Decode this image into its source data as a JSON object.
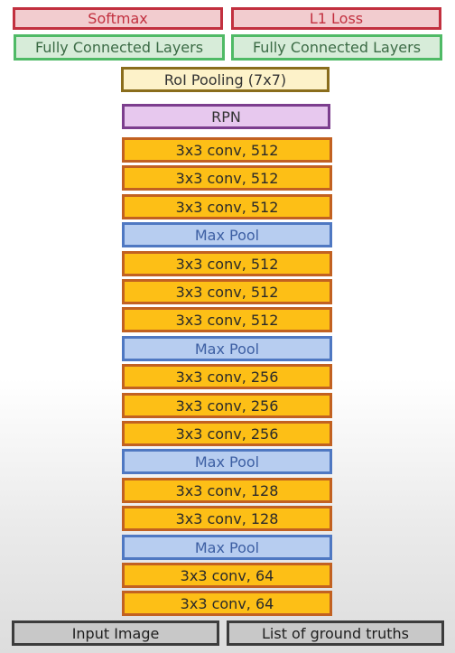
{
  "top": {
    "softmax": "Softmax",
    "l1_loss": "L1 Loss"
  },
  "fc": {
    "left": "Fully Connected Layers",
    "right": "Fully Connected Layers"
  },
  "roi_pooling": "RoI Pooling (7x7)",
  "rpn": "RPN",
  "layers": [
    {
      "type": "conv",
      "label": "3x3 conv, 512"
    },
    {
      "type": "conv",
      "label": "3x3 conv, 512"
    },
    {
      "type": "conv",
      "label": "3x3 conv, 512"
    },
    {
      "type": "pool",
      "label": "Max Pool"
    },
    {
      "type": "conv",
      "label": "3x3 conv, 512"
    },
    {
      "type": "conv",
      "label": "3x3 conv, 512"
    },
    {
      "type": "conv",
      "label": "3x3 conv, 512"
    },
    {
      "type": "pool",
      "label": "Max Pool"
    },
    {
      "type": "conv",
      "label": "3x3 conv, 256"
    },
    {
      "type": "conv",
      "label": "3x3 conv, 256"
    },
    {
      "type": "conv",
      "label": "3x3 conv, 256"
    },
    {
      "type": "pool",
      "label": "Max Pool"
    },
    {
      "type": "conv",
      "label": "3x3 conv, 128"
    },
    {
      "type": "conv",
      "label": "3x3 conv, 128"
    },
    {
      "type": "pool",
      "label": "Max Pool"
    },
    {
      "type": "conv",
      "label": "3x3 conv, 64"
    },
    {
      "type": "conv",
      "label": "3x3 conv, 64"
    }
  ],
  "inputs": {
    "image": "Input Image",
    "ground_truths": "List of ground truths"
  },
  "colors": {
    "conv_fill": "#fdbf16",
    "conv_border": "#c26121",
    "pool_fill": "#b7cdf0",
    "pool_border": "#4f78c2"
  }
}
